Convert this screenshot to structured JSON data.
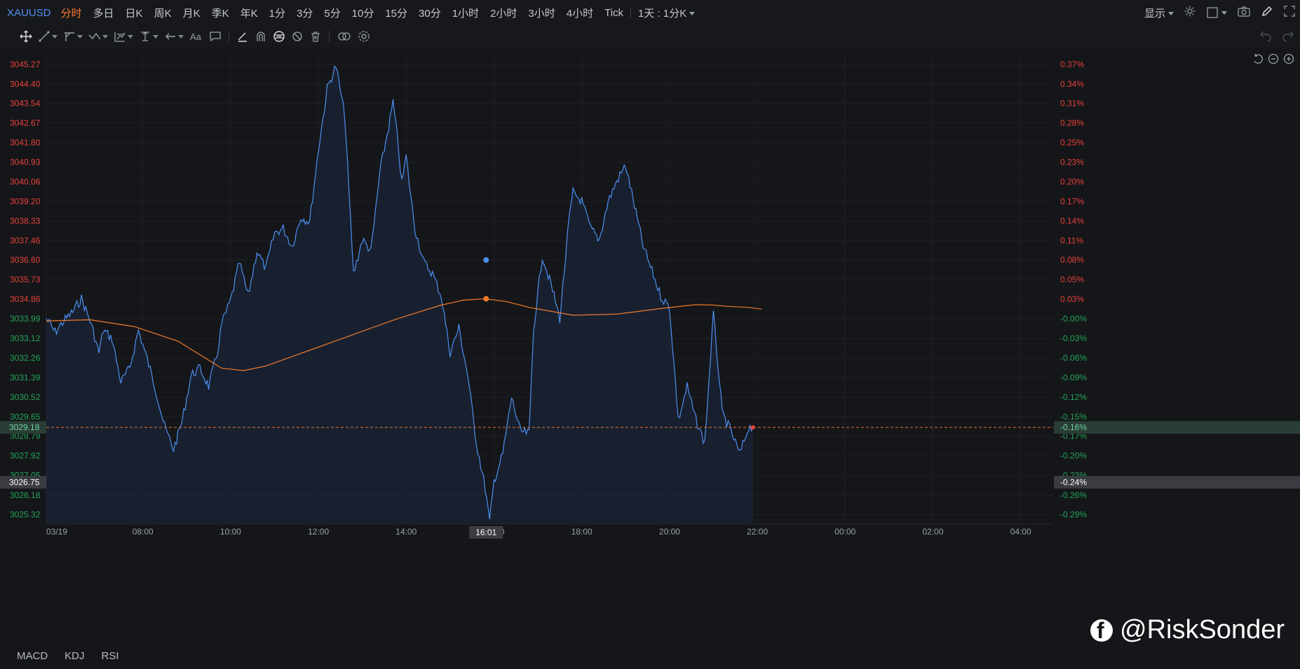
{
  "toolbar": {
    "symbol": "XAUUSD",
    "periods": [
      "分时",
      "多日",
      "日K",
      "周K",
      "月K",
      "季K",
      "年K",
      "1分",
      "3分",
      "5分",
      "10分",
      "15分",
      "30分",
      "1小时",
      "2小时",
      "3小时",
      "4小时",
      "Tick"
    ],
    "active_period": "分时",
    "range_label": "1天 : 1分K",
    "show_label": "显示"
  },
  "icons": {
    "draw_tools": [
      "move-icon",
      "line-tool-icon",
      "channel-tool-icon",
      "wave-tool-icon",
      "fib-tool-icon",
      "measure-tool-icon",
      "arrow-tool-icon",
      "text-tool-icon",
      "note-tool-icon",
      "pen-tool-icon",
      "magnet-icon",
      "lock-icon",
      "hide-icon",
      "trash-icon",
      "link-icon",
      "draw-settings-icon"
    ],
    "top_right": [
      "settings-icon",
      "layout-icon",
      "camera-icon",
      "pencil-icon",
      "fullscreen-icon"
    ]
  },
  "chart_data": {
    "type": "line",
    "title": "",
    "x_tick_labels": [
      "03/19",
      "08:00",
      "10:00",
      "12:00",
      "14:00",
      "16:00",
      "18:00",
      "20:00",
      "22:00",
      "00:00",
      "02:00",
      "04:00"
    ],
    "y_tick_labels": [
      "3045.27",
      "3044.40",
      "3043.54",
      "3042.67",
      "3041.80",
      "3040.93",
      "3040.06",
      "3039.20",
      "3038.33",
      "3037.46",
      "3036.60",
      "3035.73",
      "3034.86",
      "3033.99",
      "3033.12",
      "3032.26",
      "3031.39",
      "3030.52",
      "3029.65",
      "3028.79",
      "3027.92",
      "3027.05",
      "3026.18",
      "3025.32"
    ],
    "pct_tick_labels": [
      "0.37%",
      "0.34%",
      "0.31%",
      "0.28%",
      "0.25%",
      "0.23%",
      "0.20%",
      "0.17%",
      "0.14%",
      "0.11%",
      "0.08%",
      "0.05%",
      "0.03%",
      "-0.00%",
      "-0.03%",
      "-0.06%",
      "-0.09%",
      "-0.12%",
      "-0.15%",
      "-0.17%",
      "-0.20%",
      "-0.23%",
      "-0.26%",
      "-0.29%"
    ],
    "ylim": [
      3024.9,
      3045.7
    ],
    "reference_price": 3034.2,
    "current_price_label": "3029.18",
    "current_pct_label": "-0.16%",
    "current_price": 3029.18,
    "cursor_price_label": "3026.75",
    "cursor_pct_label": "-0.24%",
    "cursor_price": 3026.75,
    "cursor_time_label": "16:01",
    "colors": {
      "price_line": "#4d8ff0",
      "avg_line": "#f07a2a",
      "up": "#e8413c",
      "down": "#22a559",
      "current_line": "#e7742a"
    },
    "series": [
      {
        "name": "",
        "kind": "price",
        "x_hours": [
          6.0,
          6.2,
          6.4,
          6.6,
          6.8,
          7.0,
          7.2,
          7.3,
          7.5,
          7.7,
          7.9,
          8.1,
          8.3,
          8.5,
          8.7,
          8.9,
          9.1,
          9.3,
          9.5,
          9.7,
          9.9,
          10.0,
          10.2,
          10.4,
          10.6,
          10.8,
          11.0,
          11.2,
          11.4,
          11.6,
          11.8,
          12.0,
          12.2,
          12.4,
          12.6,
          12.8,
          13.0,
          13.2,
          13.4,
          13.6,
          13.8,
          13.9,
          14.0,
          14.1,
          14.2,
          14.3,
          14.4,
          14.6,
          14.8,
          15.0,
          15.2,
          15.4,
          15.6,
          15.8,
          16.0,
          16.1,
          16.2,
          16.4,
          16.6,
          16.8,
          17.0,
          17.1,
          17.3,
          17.5,
          17.7,
          17.9,
          18.0,
          18.2,
          18.4,
          18.6,
          18.8,
          19.0,
          19.2,
          19.4,
          19.6,
          19.8,
          20.0,
          20.2,
          20.4,
          20.6,
          20.8,
          21.0,
          21.2,
          21.4,
          21.6,
          21.8,
          22.0,
          22.1
        ],
        "y": [
          3034.0,
          3033.4,
          3033.9,
          3034.3,
          3034.9,
          3033.9,
          3032.5,
          3033.5,
          3033.1,
          3031.2,
          3031.8,
          3033.5,
          3032.2,
          3030.8,
          3029.2,
          3028.2,
          3029.5,
          3031.5,
          3031.8,
          3031.0,
          3032.5,
          3033.8,
          3034.8,
          3036.5,
          3035.0,
          3037.0,
          3036.2,
          3037.8,
          3038.0,
          3037.2,
          3038.5,
          3038.3,
          3041.5,
          3044.2,
          3045.2,
          3043.0,
          3036.0,
          3037.5,
          3037.0,
          3040.5,
          3042.5,
          3043.6,
          3042.0,
          3040.0,
          3041.2,
          3039.5,
          3038.0,
          3036.5,
          3036.0,
          3035.0,
          3032.5,
          3033.6,
          3031.5,
          3028.5,
          3026.5,
          3025.0,
          3026.8,
          3028.0,
          3030.5,
          3029.0,
          3028.9,
          3033.5,
          3036.8,
          3035.5,
          3034.0,
          3038.2,
          3039.6,
          3039.2,
          3038.0,
          3037.5,
          3039.2,
          3040.1,
          3040.8,
          3039.0,
          3037.2,
          3036.1,
          3035.0,
          3034.5,
          3029.5,
          3031.0,
          3029.5,
          3028.5,
          3034.2,
          3029.8,
          3029.0,
          3028.0,
          3029.2,
          3029.2
        ]
      },
      {
        "name": "",
        "kind": "average",
        "x_hours": [
          6.0,
          7.0,
          8.0,
          9.0,
          10.0,
          10.5,
          11.0,
          12.0,
          13.0,
          14.0,
          15.0,
          15.5,
          16.0,
          16.5,
          17.0,
          18.0,
          19.0,
          20.0,
          20.8,
          21.2,
          21.5,
          22.0,
          22.3
        ],
        "y": [
          3033.9,
          3033.95,
          3033.65,
          3033.0,
          3031.8,
          3031.7,
          3031.9,
          3032.6,
          3033.3,
          3034.0,
          3034.6,
          3034.82,
          3034.88,
          3034.75,
          3034.5,
          3034.15,
          3034.2,
          3034.45,
          3034.62,
          3034.6,
          3034.55,
          3034.5,
          3034.42
        ]
      }
    ]
  },
  "indicators": [
    "MACD",
    "KDJ",
    "RSI"
  ],
  "watermark": {
    "text": "@RiskSonder",
    "icon": "facebook-icon"
  }
}
